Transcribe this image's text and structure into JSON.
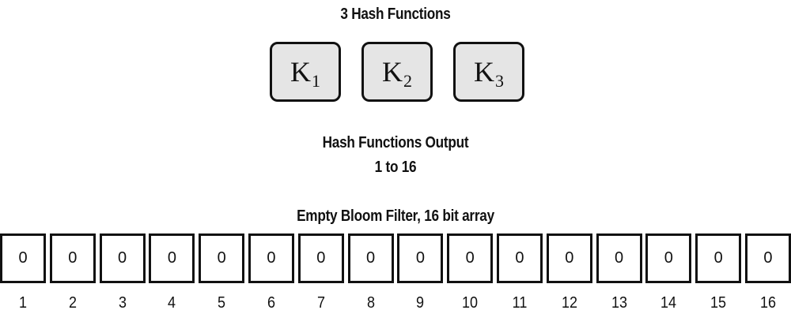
{
  "title": "3 Hash Functions",
  "hash_functions": [
    {
      "letter": "K",
      "subscript": "1"
    },
    {
      "letter": "K",
      "subscript": "2"
    },
    {
      "letter": "K",
      "subscript": "3"
    }
  ],
  "output_title": "Hash Functions Output",
  "output_range": "1 to 16",
  "filter_title": "Empty Bloom Filter, 16 bit array",
  "bits": [
    "0",
    "0",
    "0",
    "0",
    "0",
    "0",
    "0",
    "0",
    "0",
    "0",
    "0",
    "0",
    "0",
    "0",
    "0",
    "0"
  ],
  "indices": [
    "1",
    "2",
    "3",
    "4",
    "5",
    "6",
    "7",
    "8",
    "9",
    "10",
    "11",
    "12",
    "13",
    "14",
    "15",
    "16"
  ],
  "colors": {
    "box_fill": "#e5e5e5",
    "stroke": "#111111"
  }
}
